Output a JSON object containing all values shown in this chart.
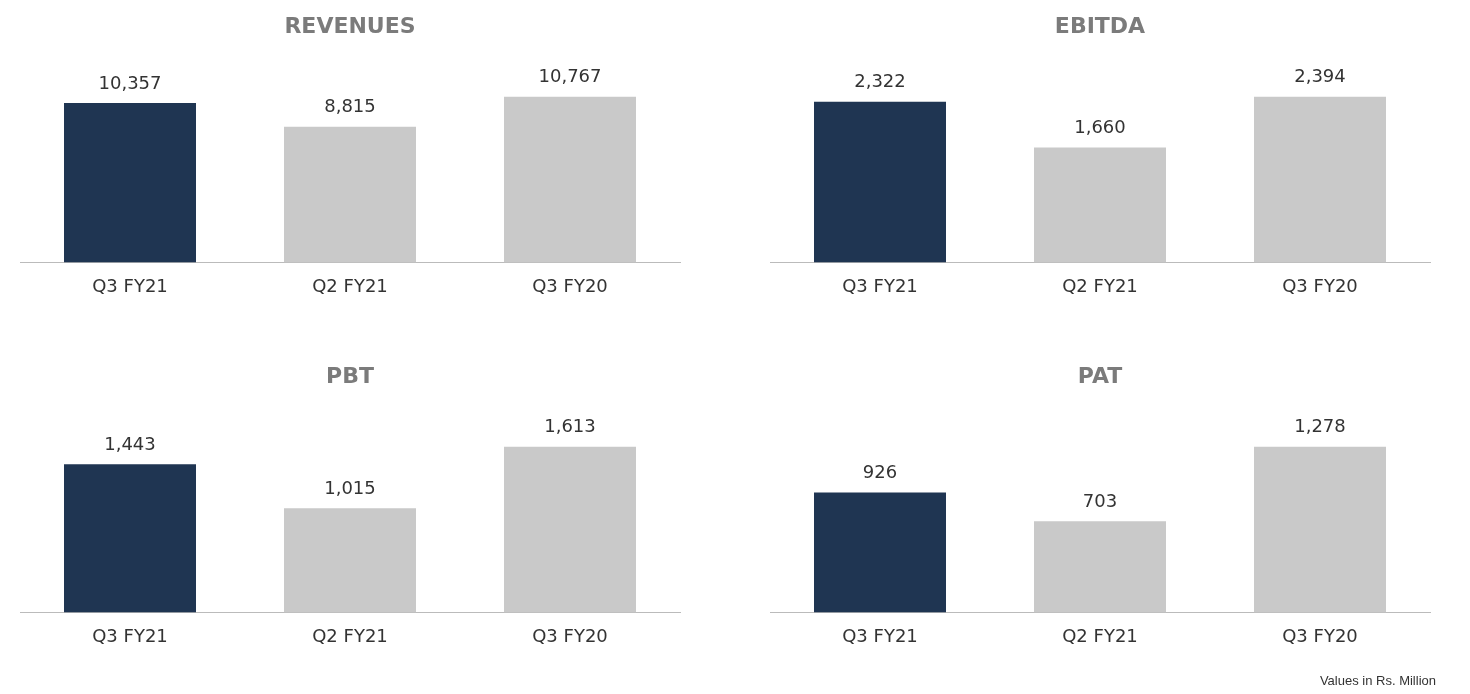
{
  "chart_data": [
    {
      "type": "bar",
      "title": "REVENUES",
      "categories": [
        "Q3 FY21",
        "Q2 FY21",
        "Q3 FY20"
      ],
      "values": [
        10357,
        8815,
        10767
      ],
      "value_labels": [
        "10,357",
        "8,815",
        "10,767"
      ],
      "colors": [
        "#1f3552",
        "#c9c9c9",
        "#c9c9c9"
      ],
      "tick_labels": "x",
      "grid": false,
      "legend": false
    },
    {
      "type": "bar",
      "title": "EBITDA",
      "categories": [
        "Q3 FY21",
        "Q2 FY21",
        "Q3 FY20"
      ],
      "values": [
        2322,
        1660,
        2394
      ],
      "value_labels": [
        "2,322",
        "1,660",
        "2,394"
      ],
      "colors": [
        "#1f3552",
        "#c9c9c9",
        "#c9c9c9"
      ],
      "tick_labels": "x",
      "grid": false,
      "legend": false
    },
    {
      "type": "bar",
      "title": "PBT",
      "categories": [
        "Q3 FY21",
        "Q2 FY21",
        "Q3 FY20"
      ],
      "values": [
        1443,
        1015,
        1613
      ],
      "value_labels": [
        "1,443",
        "1,015",
        "1,613"
      ],
      "colors": [
        "#1f3552",
        "#c9c9c9",
        "#c9c9c9"
      ],
      "tick_labels": "x",
      "grid": false,
      "legend": false
    },
    {
      "type": "bar",
      "title": "PAT",
      "categories": [
        "Q3 FY21",
        "Q2 FY21",
        "Q3 FY20"
      ],
      "values": [
        926,
        703,
        1278
      ],
      "value_labels": [
        "926",
        "703",
        "1,278"
      ],
      "colors": [
        "#1f3552",
        "#c9c9c9",
        "#c9c9c9"
      ],
      "tick_labels": "x",
      "grid": false,
      "legend": false,
      "annotations": [
        "Values in Rs. Million"
      ]
    }
  ]
}
